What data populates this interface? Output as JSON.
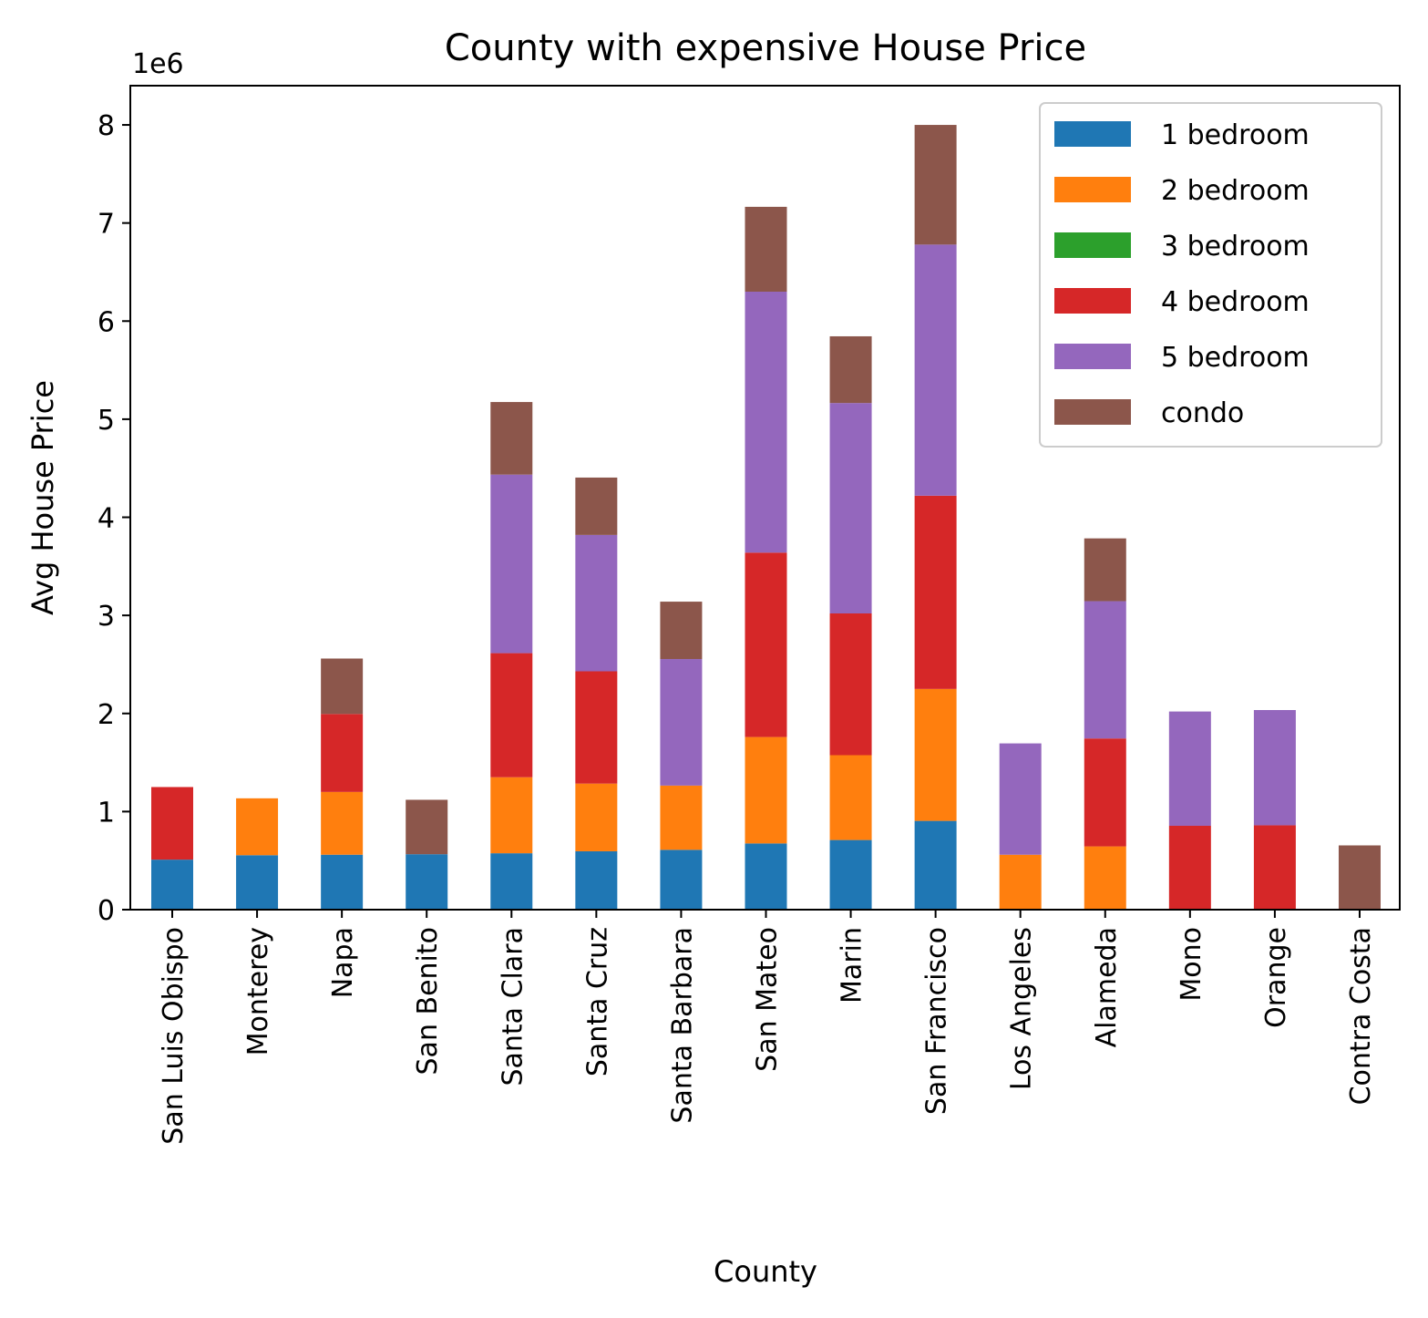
{
  "chart_data": {
    "type": "bar",
    "stacked": true,
    "title": "County with expensive House Price",
    "xlabel": "County",
    "ylabel": "Avg House Price",
    "y_offset_label": "1e6",
    "ylim": [
      0,
      8400000
    ],
    "yticks": [
      0,
      1000000,
      2000000,
      3000000,
      4000000,
      5000000,
      6000000,
      7000000,
      8000000
    ],
    "ytick_labels": [
      "0",
      "1",
      "2",
      "3",
      "4",
      "5",
      "6",
      "7",
      "8"
    ],
    "grid": false,
    "legend_position": "top-right",
    "categories": [
      "San Luis Obispo",
      "Monterey",
      "Napa",
      "San Benito",
      "Santa Clara",
      "Santa Cruz",
      "Santa Barbara",
      "San Mateo",
      "Marin",
      "San Francisco",
      "Los Angeles",
      "Alameda",
      "Mono",
      "Orange",
      "Contra Costa"
    ],
    "series": [
      {
        "name": "1 bedroom",
        "color": "#1f77b4",
        "values": [
          510000,
          555000,
          560000,
          565000,
          575000,
          595000,
          610000,
          675000,
          710000,
          905000,
          0,
          0,
          0,
          0,
          0
        ]
      },
      {
        "name": "2 bedroom",
        "color": "#ff7f0e",
        "values": [
          0,
          580000,
          640000,
          0,
          775000,
          690000,
          655000,
          1085000,
          865000,
          1345000,
          560000,
          645000,
          0,
          0,
          0
        ]
      },
      {
        "name": "3 bedroom",
        "color": "#2ca02c",
        "values": [
          0,
          0,
          0,
          0,
          0,
          0,
          0,
          0,
          0,
          0,
          0,
          0,
          0,
          0,
          0
        ]
      },
      {
        "name": "4 bedroom",
        "color": "#d62728",
        "values": [
          740000,
          0,
          795000,
          0,
          1265000,
          1145000,
          0,
          1880000,
          1445000,
          1970000,
          0,
          1100000,
          855000,
          860000,
          0
        ]
      },
      {
        "name": "5 bedroom",
        "color": "#9467bd",
        "values": [
          0,
          0,
          0,
          0,
          1820000,
          1390000,
          1290000,
          2660000,
          2145000,
          2560000,
          1135000,
          1400000,
          1165000,
          1175000,
          0
        ]
      },
      {
        "name": "condo",
        "color": "#8c564b",
        "values": [
          0,
          0,
          565000,
          555000,
          740000,
          585000,
          585000,
          865000,
          680000,
          1220000,
          0,
          640000,
          0,
          0,
          655000
        ]
      }
    ]
  }
}
